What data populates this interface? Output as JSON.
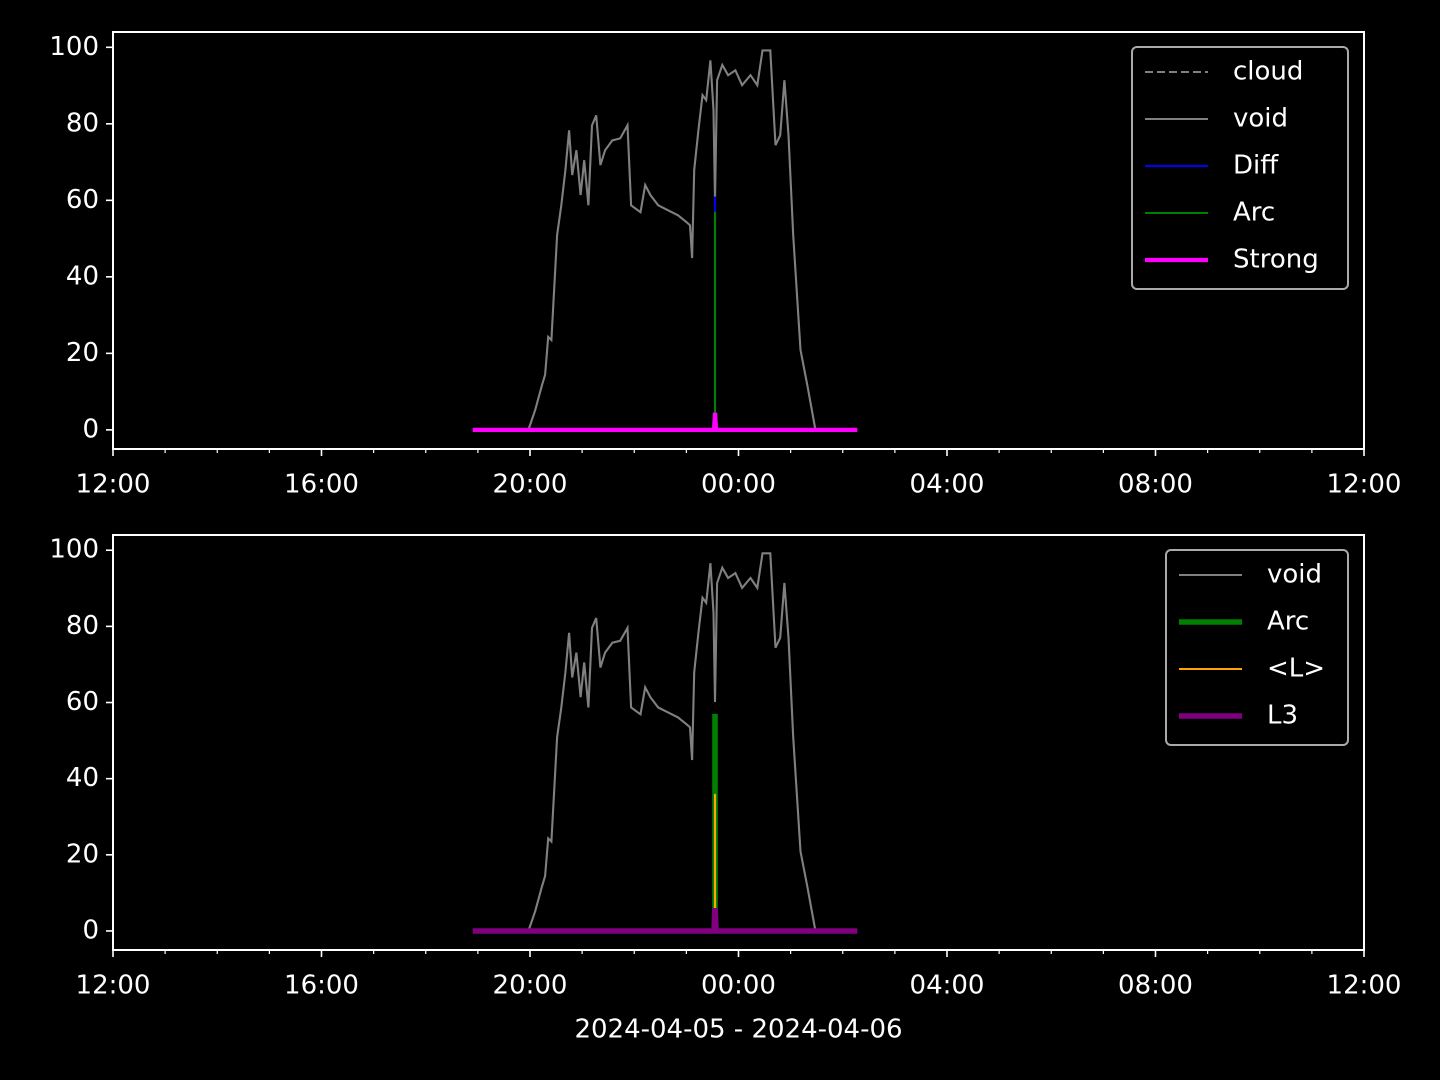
{
  "chart_data": [
    {
      "type": "line",
      "legend": "upper right",
      "xlim": [
        12,
        36
      ],
      "ylim": [
        -5,
        104
      ],
      "xticks": [
        {
          "value": 12,
          "label": "12:00"
        },
        {
          "value": 16,
          "label": "16:00"
        },
        {
          "value": 20,
          "label": "20:00"
        },
        {
          "value": 24,
          "label": "00:00"
        },
        {
          "value": 28,
          "label": "04:00"
        },
        {
          "value": 32,
          "label": "08:00"
        },
        {
          "value": 36,
          "label": "12:00"
        }
      ],
      "xminorticks": [
        13,
        14,
        15,
        17,
        18,
        19,
        21,
        22,
        23,
        25,
        26,
        27,
        29,
        30,
        31,
        33,
        34,
        35
      ],
      "yticks": [
        0,
        20,
        40,
        60,
        80,
        100
      ],
      "series": [
        {
          "name": "cloud",
          "color": "#808080",
          "linestyle": "dashed",
          "linewidth": 1.5,
          "x": [
            18.9,
            26.28
          ],
          "values": [
            null,
            null
          ]
        },
        {
          "name": "void",
          "color": "#808080",
          "linestyle": "solid",
          "linewidth": 1.5,
          "x": [
            19.97,
            20.1,
            20.23,
            20.29,
            20.35,
            20.41,
            20.52,
            20.6,
            20.68,
            20.75,
            20.81,
            20.89,
            20.97,
            21.04,
            21.12,
            21.19,
            21.27,
            21.35,
            21.44,
            21.58,
            21.73,
            21.87,
            21.94,
            22.12,
            22.21,
            22.31,
            22.46,
            22.65,
            22.84,
            23.0,
            23.07,
            23.11,
            23.15,
            23.23,
            23.31,
            23.38,
            23.46,
            23.52,
            23.55,
            23.59,
            23.69,
            23.8,
            23.94,
            24.07,
            24.23,
            24.36,
            24.46,
            24.61,
            24.71,
            24.8,
            24.88,
            24.96,
            25.05,
            25.19,
            25.32,
            25.47
          ],
          "values": [
            0,
            5.2,
            11.7,
            14.4,
            24.3,
            23.5,
            50.9,
            58.7,
            67.9,
            78.3,
            66.6,
            73.1,
            61.4,
            70.5,
            58.7,
            79.6,
            82.2,
            69.2,
            73.1,
            75.7,
            76.2,
            79.6,
            58.7,
            56.9,
            64.0,
            61.4,
            58.7,
            57.4,
            56.1,
            54.3,
            53.5,
            44.9,
            67.9,
            78.3,
            87.5,
            86.2,
            96.6,
            83.6,
            60.1,
            91.4,
            95.4,
            92.7,
            94.0,
            90.1,
            92.7,
            90.1,
            99.2,
            99.2,
            74.4,
            77.0,
            91.4,
            77.0,
            50.9,
            20.9,
            11.7,
            0.5
          ]
        },
        {
          "name": "Diff",
          "color": "#0000ff",
          "linestyle": "solid",
          "linewidth": 1.5,
          "x": [
            23.55,
            23.55
          ],
          "values": [
            0,
            61
          ]
        },
        {
          "name": "Arc",
          "color": "#008000",
          "linestyle": "solid",
          "linewidth": 1.5,
          "x": [
            23.55,
            23.55
          ],
          "values": [
            0,
            57
          ]
        },
        {
          "name": "Strong",
          "color": "#ff00ff",
          "linestyle": "solid",
          "linewidth": 3,
          "x": [
            18.9,
            23.53,
            23.55,
            23.57,
            26.28
          ],
          "values": [
            0,
            0,
            4.5,
            0,
            0
          ]
        }
      ]
    },
    {
      "type": "line",
      "legend": "upper right",
      "xlim": [
        12,
        36
      ],
      "ylim": [
        -5,
        104
      ],
      "xticks": [
        {
          "value": 12,
          "label": "12:00"
        },
        {
          "value": 16,
          "label": "16:00"
        },
        {
          "value": 20,
          "label": "20:00"
        },
        {
          "value": 24,
          "label": "00:00"
        },
        {
          "value": 28,
          "label": "04:00"
        },
        {
          "value": 32,
          "label": "08:00"
        },
        {
          "value": 36,
          "label": "12:00"
        }
      ],
      "xminorticks": [
        13,
        14,
        15,
        17,
        18,
        19,
        21,
        22,
        23,
        25,
        26,
        27,
        29,
        30,
        31,
        33,
        34,
        35
      ],
      "yticks": [
        0,
        20,
        40,
        60,
        80,
        100
      ],
      "xlabel": "2024-04-05 - 2024-04-06",
      "series": [
        {
          "name": "void",
          "color": "#808080",
          "linestyle": "solid",
          "linewidth": 1.5,
          "x": [
            19.97,
            20.1,
            20.23,
            20.29,
            20.35,
            20.41,
            20.52,
            20.6,
            20.68,
            20.75,
            20.81,
            20.89,
            20.97,
            21.04,
            21.12,
            21.19,
            21.27,
            21.35,
            21.44,
            21.58,
            21.73,
            21.87,
            21.94,
            22.12,
            22.21,
            22.31,
            22.46,
            22.65,
            22.84,
            23.0,
            23.07,
            23.11,
            23.15,
            23.23,
            23.31,
            23.38,
            23.46,
            23.52,
            23.55,
            23.59,
            23.69,
            23.8,
            23.94,
            24.07,
            24.23,
            24.36,
            24.46,
            24.61,
            24.71,
            24.8,
            24.88,
            24.96,
            25.05,
            25.19,
            25.32,
            25.47
          ],
          "values": [
            0,
            5.2,
            11.7,
            14.4,
            24.3,
            23.5,
            50.9,
            58.7,
            67.9,
            78.3,
            66.6,
            73.1,
            61.4,
            70.5,
            58.7,
            79.6,
            82.2,
            69.2,
            73.1,
            75.7,
            76.2,
            79.6,
            58.7,
            56.9,
            64.0,
            61.4,
            58.7,
            57.4,
            56.1,
            54.3,
            53.5,
            44.9,
            67.9,
            78.3,
            87.5,
            86.2,
            96.6,
            83.6,
            60.1,
            91.4,
            95.4,
            92.7,
            94.0,
            90.1,
            92.7,
            90.1,
            99.2,
            99.2,
            74.4,
            77.0,
            91.4,
            77.0,
            50.9,
            20.9,
            11.7,
            0.5
          ]
        },
        {
          "name": "Arc",
          "color": "#008000",
          "linestyle": "solid",
          "linewidth": 4,
          "x": [
            23.55,
            23.55
          ],
          "values": [
            0,
            57
          ]
        },
        {
          "name": "<L>",
          "color": "#ffa500",
          "linestyle": "solid",
          "linewidth": 1.5,
          "x": [
            23.55,
            23.55
          ],
          "values": [
            0,
            36
          ]
        },
        {
          "name": "L3",
          "color": "#800080",
          "linestyle": "solid",
          "linewidth": 4,
          "x": [
            18.9,
            23.53,
            23.55,
            23.57,
            26.28
          ],
          "values": [
            0,
            0,
            6,
            0,
            0
          ]
        }
      ]
    }
  ]
}
